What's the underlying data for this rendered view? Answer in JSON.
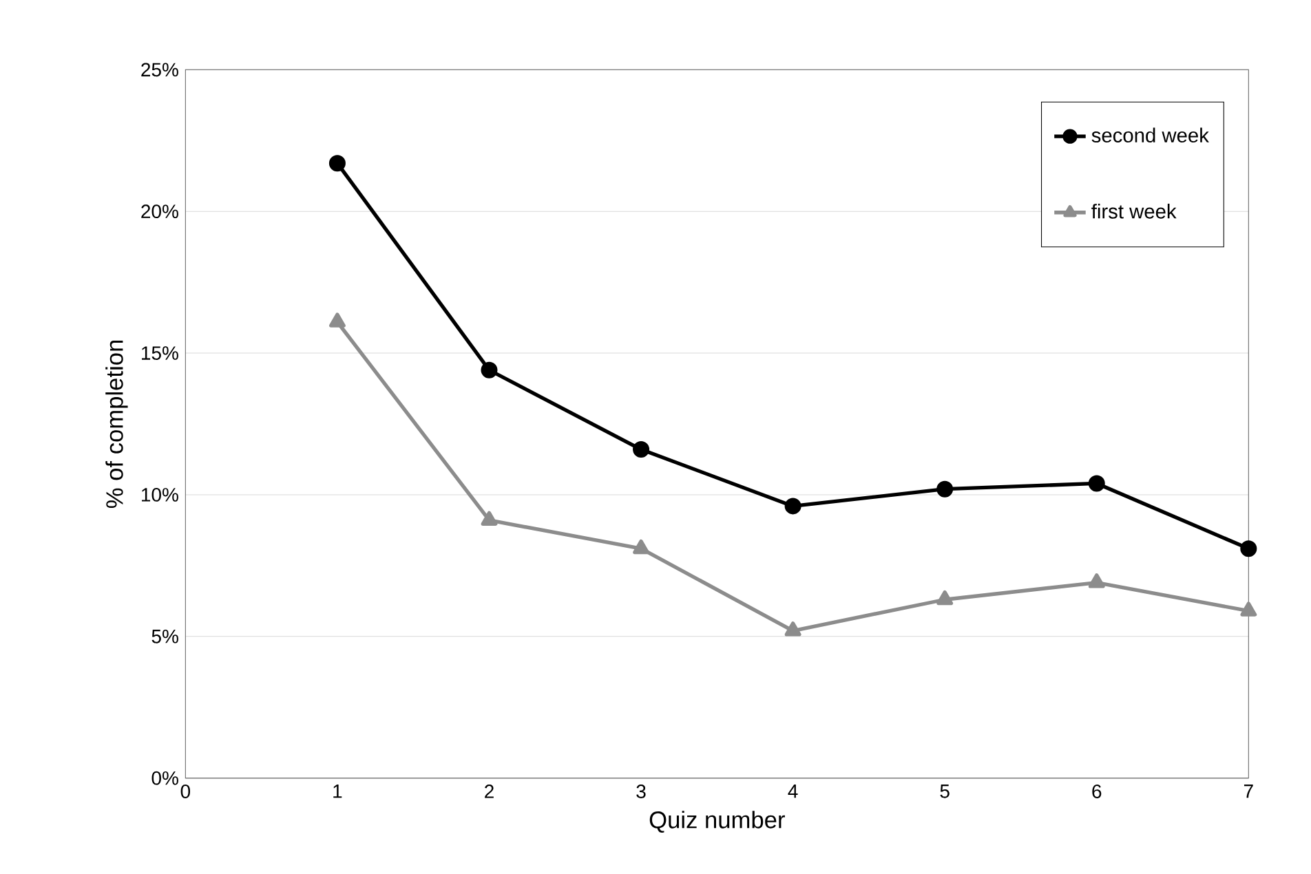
{
  "chart_data": {
    "type": "line",
    "xlabel": "Quiz number",
    "ylabel": "% of completion",
    "x": [
      1,
      2,
      3,
      4,
      5,
      6,
      7
    ],
    "series": [
      {
        "name": "second week",
        "color": "#000000",
        "marker": "circle",
        "values": [
          21.7,
          14.4,
          11.6,
          9.6,
          10.2,
          10.4,
          8.1
        ]
      },
      {
        "name": "first week",
        "color": "#8c8c8c",
        "marker": "triangle",
        "values": [
          16.1,
          9.1,
          8.1,
          5.2,
          6.3,
          6.9,
          5.9
        ]
      }
    ],
    "xlim": [
      0,
      7
    ],
    "xticks": [
      0,
      1,
      2,
      3,
      4,
      5,
      6,
      7
    ],
    "ylim": [
      0,
      25
    ],
    "yticks": [
      {
        "value": 0,
        "label": "0%"
      },
      {
        "value": 5,
        "label": "5%"
      },
      {
        "value": 10,
        "label": "10%"
      },
      {
        "value": 15,
        "label": "15%"
      },
      {
        "value": 20,
        "label": "20%"
      },
      {
        "value": 25,
        "label": "25%"
      }
    ],
    "grid": "y",
    "legend": "top right",
    "line_style": "solid"
  }
}
